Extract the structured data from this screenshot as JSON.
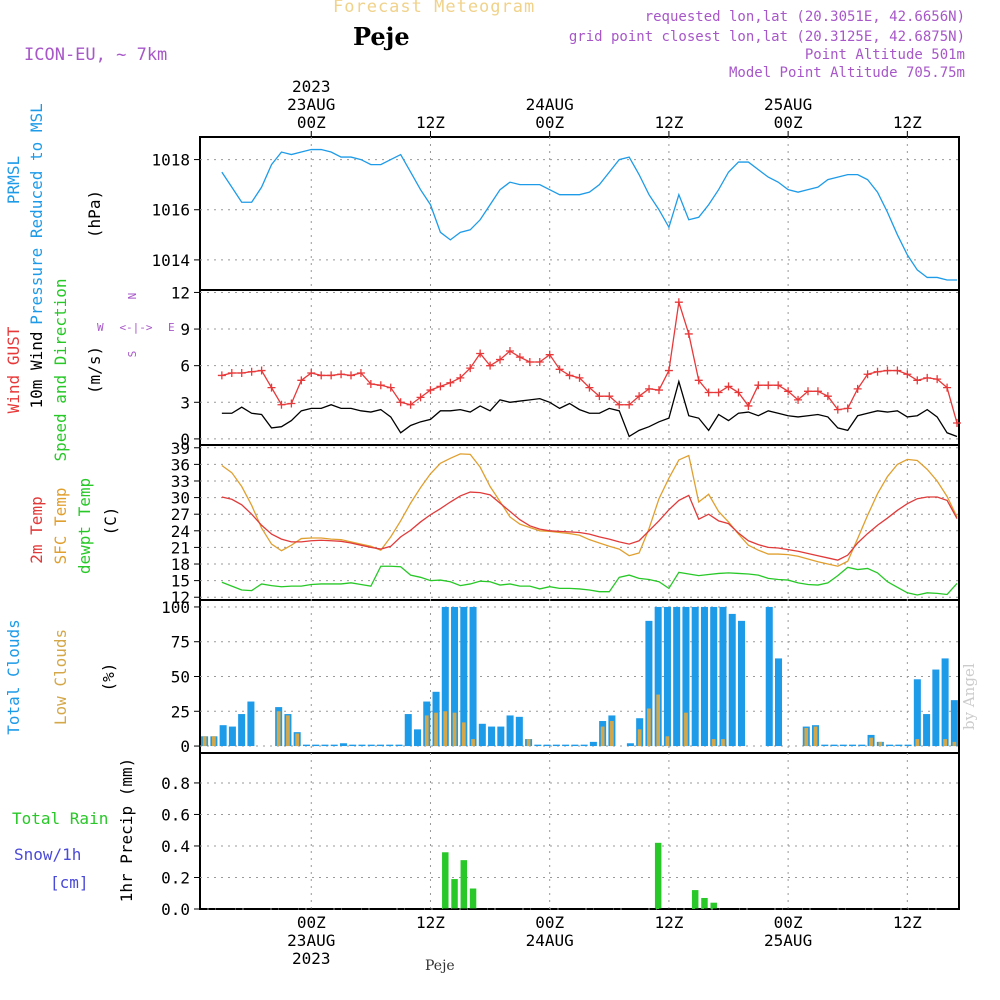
{
  "header": {
    "title": "Forecast Meteogram",
    "station": "Peje",
    "model": "ICON-EU, ~ 7km",
    "requested": "requested lon,lat (20.3051E, 42.6656N)",
    "grid_point": "grid point closest lon,lat (20.3125E, 42.6875N)",
    "point_altitude": "Point Altitude 501m",
    "model_altitude": "Model Point Altitude 705.75m",
    "footer": "Peje",
    "credit": "by Angel"
  },
  "colors": {
    "pressure": "#1e9be8",
    "gust": "#e8393a",
    "wind": "#000000",
    "temp2m": "#e03a3a",
    "sfc": "#e0a030",
    "dewpt": "#28c828",
    "total_clouds": "#1e9be8",
    "low_clouds": "#d4a84a",
    "rain": "#28c828",
    "snow": "#4a4ad8",
    "purple": "#a757c8"
  },
  "time_axis": {
    "top_year": "2023",
    "top_labels": [
      {
        "h": 9,
        "lines": [
          "23AUG",
          "00Z"
        ]
      },
      {
        "h": 21,
        "lines": [
          "12Z"
        ]
      },
      {
        "h": 33,
        "lines": [
          "24AUG",
          "00Z"
        ]
      },
      {
        "h": 45,
        "lines": [
          "12Z"
        ]
      },
      {
        "h": 57,
        "lines": [
          "25AUG",
          "00Z"
        ]
      },
      {
        "h": 69,
        "lines": [
          "12Z"
        ]
      }
    ],
    "bottom_labels": [
      {
        "h": 9,
        "lines": [
          "00Z",
          "23AUG",
          "2023"
        ]
      },
      {
        "h": 21,
        "lines": [
          "12Z"
        ]
      },
      {
        "h": 33,
        "lines": [
          "00Z",
          "24AUG"
        ]
      },
      {
        "h": 45,
        "lines": [
          "12Z"
        ]
      },
      {
        "h": 57,
        "lines": [
          "00Z",
          "25AUG"
        ]
      },
      {
        "h": 69,
        "lines": [
          "12Z"
        ]
      }
    ],
    "hour_range": [
      -2.2,
      74.2
    ]
  },
  "chart_data": [
    {
      "type": "line",
      "panel": "pressure",
      "ylabel": [
        "PRMSL",
        "Pressure Reduced to MSL"
      ],
      "unit": "(hPa)",
      "ylim": [
        1012.8,
        1018.9
      ],
      "yticks": [
        1014,
        1016,
        1018
      ],
      "series": [
        {
          "name": "PRMSL",
          "values": [
            1017.5,
            1016.9,
            1016.3,
            1016.3,
            1016.9,
            1017.8,
            1018.3,
            1018.2,
            1018.3,
            1018.4,
            1018.4,
            1018.3,
            1018.1,
            1018.1,
            1018.0,
            1017.8,
            1017.8,
            1018.0,
            1018.2,
            1017.5,
            1016.8,
            1016.2,
            1015.1,
            1014.8,
            1015.1,
            1015.2,
            1015.6,
            1016.2,
            1016.8,
            1017.1,
            1017.0,
            1017.0,
            1017.0,
            1016.8,
            1016.6,
            1016.6,
            1016.6,
            1016.7,
            1017.0,
            1017.5,
            1018.0,
            1018.1,
            1017.4,
            1016.6,
            1016.0,
            1015.3,
            1016.6,
            1015.6,
            1015.7,
            1016.2,
            1016.8,
            1017.5,
            1017.9,
            1017.9,
            1017.6,
            1017.3,
            1017.1,
            1016.8,
            1016.7,
            1016.8,
            1016.9,
            1017.2,
            1017.3,
            1017.4,
            1017.4,
            1017.2,
            1016.7,
            1015.9,
            1015.0,
            1014.2,
            1013.6,
            1013.3,
            1013.3,
            1013.2,
            1013.2
          ]
        }
      ]
    },
    {
      "type": "line",
      "panel": "wind",
      "ylabel": [
        "Wind GUST",
        "10m Wind",
        "Speed and Direction"
      ],
      "unit": "(m/s)",
      "compass": {
        "north": "N",
        "south": "S",
        "west": "W",
        "east": "E"
      },
      "ylim": [
        -0.5,
        12.2
      ],
      "yticks": [
        0,
        3,
        6,
        9,
        12
      ],
      "series": [
        {
          "name": "Wind GUST",
          "values": [
            5.2,
            5.4,
            5.4,
            5.5,
            5.6,
            4.2,
            2.8,
            2.9,
            4.8,
            5.4,
            5.2,
            5.2,
            5.3,
            5.2,
            5.4,
            4.5,
            4.4,
            4.2,
            3.0,
            2.8,
            3.4,
            4.0,
            4.3,
            4.6,
            5.0,
            5.8,
            7.0,
            6.0,
            6.5,
            7.2,
            6.7,
            6.3,
            6.3,
            6.9,
            5.7,
            5.2,
            5.0,
            4.2,
            3.5,
            3.5,
            2.8,
            2.8,
            3.5,
            4.1,
            4.0,
            5.6,
            11.2,
            8.6,
            4.8,
            3.8,
            3.8,
            4.3,
            3.8,
            2.7,
            4.4,
            4.4,
            4.4,
            3.9,
            3.2,
            3.9,
            3.9,
            3.5,
            2.4,
            2.5,
            4.1,
            5.3,
            5.5,
            5.6,
            5.6,
            5.3,
            4.8,
            5.0,
            4.9,
            4.2,
            1.3
          ]
        },
        {
          "name": "10m Wind",
          "values": [
            2.1,
            2.1,
            2.6,
            2.1,
            2.0,
            0.9,
            1.0,
            1.5,
            2.3,
            2.5,
            2.5,
            2.8,
            2.5,
            2.5,
            2.3,
            2.2,
            2.4,
            1.8,
            0.5,
            1.1,
            1.4,
            1.6,
            2.3,
            2.3,
            2.4,
            2.2,
            2.7,
            2.3,
            3.2,
            3.0,
            3.1,
            3.2,
            3.3,
            3.0,
            2.5,
            2.9,
            2.4,
            2.1,
            2.1,
            2.5,
            2.3,
            0.2,
            0.7,
            1.0,
            1.4,
            1.7,
            4.7,
            1.9,
            1.7,
            0.7,
            2.0,
            1.5,
            2.1,
            2.2,
            1.9,
            2.3,
            2.1,
            1.9,
            1.8,
            1.9,
            2.0,
            1.8,
            0.9,
            0.7,
            1.9,
            2.1,
            2.3,
            2.2,
            2.3,
            1.8,
            1.9,
            2.4,
            1.8,
            0.5,
            0.2
          ]
        }
      ]
    },
    {
      "type": "line",
      "panel": "temperature",
      "ylabel": [
        "2m Temp",
        "SFC Temp",
        "dewpt Temp"
      ],
      "unit": "(C)",
      "ylim": [
        11.5,
        39.5
      ],
      "yticks": [
        12,
        15,
        18,
        21,
        24,
        27,
        30,
        33,
        36,
        39
      ],
      "series": [
        {
          "name": "2m Temp",
          "values": [
            30.1,
            29.7,
            28.7,
            27.0,
            25.0,
            23.4,
            22.5,
            22.0,
            22.0,
            22.2,
            22.3,
            22.2,
            22.1,
            21.8,
            21.4,
            21.0,
            20.7,
            21.2,
            22.9,
            24.1,
            25.6,
            26.9,
            28.0,
            29.2,
            30.3,
            31.0,
            30.9,
            30.5,
            29.0,
            27.5,
            26.0,
            24.9,
            24.3,
            24.0,
            23.9,
            23.8,
            23.7,
            23.4,
            22.9,
            22.5,
            22.0,
            21.6,
            22.2,
            24.0,
            25.8,
            27.8,
            29.5,
            30.4,
            26.1,
            27.0,
            25.8,
            25.3,
            23.6,
            22.2,
            21.5,
            21.0,
            20.9,
            20.6,
            20.3,
            19.9,
            19.5,
            19.1,
            18.7,
            19.6,
            21.8,
            23.5,
            25.0,
            26.3,
            27.7,
            28.9,
            29.8,
            30.1,
            30.1,
            29.5,
            26.2
          ]
        },
        {
          "name": "SFC Temp",
          "values": [
            35.8,
            34.5,
            32.0,
            28.6,
            24.5,
            21.6,
            20.4,
            21.4,
            22.6,
            22.7,
            22.7,
            22.5,
            22.4,
            22.0,
            21.6,
            21.2,
            20.5,
            22.9,
            25.8,
            29.0,
            31.8,
            34.3,
            36.2,
            37.1,
            37.9,
            37.8,
            35.5,
            32.0,
            29.3,
            26.5,
            25.2,
            24.6,
            24.0,
            23.9,
            23.7,
            23.5,
            23.2,
            22.4,
            21.8,
            21.2,
            20.7,
            19.5,
            20.0,
            24.4,
            29.8,
            33.5,
            36.8,
            37.6,
            29.2,
            30.6,
            27.5,
            25.6,
            23.4,
            21.4,
            20.5,
            19.8,
            19.8,
            19.7,
            19.4,
            18.9,
            18.4,
            18.0,
            17.6,
            18.5,
            22.6,
            26.8,
            30.7,
            33.8,
            36.0,
            36.9,
            36.7,
            35.1,
            33.0,
            30.2,
            26.5
          ]
        },
        {
          "name": "dewpt Temp",
          "values": [
            14.7,
            14.0,
            13.3,
            13.2,
            14.4,
            14.1,
            13.9,
            14.0,
            14.0,
            14.3,
            14.4,
            14.4,
            14.4,
            14.6,
            14.3,
            14.0,
            17.6,
            17.6,
            17.5,
            16.0,
            15.6,
            15.0,
            15.1,
            14.8,
            14.1,
            14.4,
            14.9,
            14.8,
            14.2,
            14.4,
            14.0,
            14.0,
            13.5,
            13.9,
            13.6,
            13.6,
            13.5,
            13.3,
            13.0,
            13.0,
            15.6,
            16.0,
            15.4,
            15.2,
            14.8,
            13.6,
            16.5,
            16.2,
            15.9,
            16.1,
            16.3,
            16.4,
            16.3,
            16.2,
            16.0,
            15.4,
            15.2,
            15.1,
            14.6,
            14.3,
            14.2,
            14.6,
            15.9,
            17.4,
            17.0,
            17.2,
            16.4,
            14.8,
            13.8,
            12.8,
            12.4,
            12.8,
            12.7,
            12.5,
            14.5
          ]
        }
      ]
    },
    {
      "type": "bar",
      "panel": "clouds",
      "ylabel": [
        "Total Clouds",
        "Low Clouds"
      ],
      "unit": "(%)",
      "ylim": [
        -5,
        105
      ],
      "yticks": [
        0,
        25,
        50,
        75,
        100
      ],
      "series": [
        {
          "name": "Total Clouds",
          "values": [
            7,
            7,
            15,
            14,
            23,
            32,
            0,
            0,
            28,
            23,
            10,
            1,
            1,
            1,
            1,
            2,
            1,
            1,
            1,
            1,
            1,
            1,
            23,
            12,
            32,
            39,
            100,
            100,
            100,
            100,
            16,
            14,
            14,
            22,
            21,
            5,
            1,
            1,
            1,
            1,
            1,
            1,
            3,
            18,
            22,
            0,
            2,
            20,
            90,
            100,
            100,
            100,
            100,
            100,
            100,
            100,
            100,
            95,
            90,
            0,
            0,
            100,
            63,
            0,
            0,
            14,
            15,
            1,
            1,
            1,
            1,
            1,
            8,
            3,
            1,
            1,
            1,
            48,
            23,
            55,
            63,
            33
          ]
        },
        {
          "name": "Low Clouds",
          "values": [
            7,
            7,
            0,
            0,
            0,
            0,
            0,
            0,
            25,
            22,
            9,
            0,
            0,
            0,
            0,
            0,
            0,
            0,
            0,
            0,
            0,
            0,
            0,
            0,
            22,
            24,
            25,
            24,
            17,
            5,
            0,
            0,
            0,
            0,
            0,
            5,
            0,
            0,
            0,
            0,
            0,
            0,
            0,
            14,
            18,
            0,
            0,
            12,
            27,
            37,
            7,
            0,
            24,
            0,
            0,
            5,
            5,
            0,
            0,
            0,
            0,
            0,
            0,
            0,
            0,
            13,
            14,
            0,
            0,
            0,
            0,
            0,
            6,
            3,
            0,
            0,
            0,
            5,
            0,
            0,
            5,
            3
          ]
        }
      ]
    },
    {
      "type": "bar",
      "panel": "precip",
      "ylabel_left": [
        "Total Rain",
        "Snow/1h",
        "[cm]"
      ],
      "ylabel": "1hr Precip (mm)",
      "ylim": [
        0,
        0.99
      ],
      "yticks": [
        0,
        0.2,
        0.4,
        0.6,
        0.8
      ],
      "series": [
        {
          "name": "Total Rain",
          "values": [
            0,
            0,
            0,
            0,
            0,
            0,
            0,
            0,
            0,
            0,
            0,
            0,
            0,
            0,
            0,
            0,
            0,
            0,
            0,
            0,
            0,
            0,
            0,
            0,
            0,
            0,
            0.36,
            0.19,
            0.31,
            0.13,
            0,
            0,
            0,
            0,
            0,
            0,
            0,
            0,
            0,
            0,
            0,
            0,
            0,
            0,
            0,
            0,
            0,
            0,
            0,
            0.42,
            0,
            0,
            0,
            0.12,
            0.07,
            0.04,
            0,
            0,
            0,
            0,
            0,
            0,
            0,
            0,
            0,
            0,
            0,
            0,
            0,
            0,
            0,
            0,
            0,
            0,
            0,
            0,
            0,
            0,
            0,
            0,
            0,
            0
          ]
        }
      ]
    }
  ]
}
